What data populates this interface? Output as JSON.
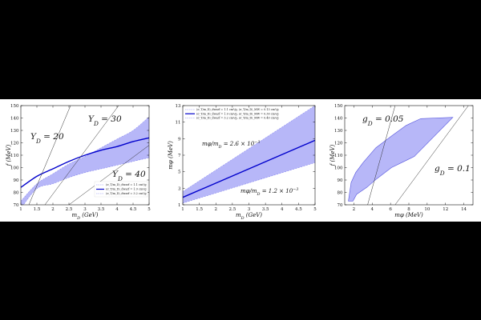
{
  "chart_data": [
    {
      "type": "area",
      "xlabel": "m_D (GeV)",
      "ylabel": "f (MeV)",
      "xlim": [
        1,
        5
      ],
      "ylim": [
        70,
        150
      ],
      "xticks": [
        1,
        1.5,
        2,
        2.5,
        3,
        3.5,
        4,
        4.5,
        5
      ],
      "yticks": [
        70,
        80,
        90,
        100,
        110,
        120,
        130,
        140,
        150
      ],
      "x": [
        1,
        1.5,
        2,
        2.5,
        3,
        3.5,
        4,
        4.5,
        5
      ],
      "series": [
        {
          "name": "⟨σ_T/m_D⟩_dwarf = 1.1 cm²/g",
          "style": "dashed",
          "values": [
            73,
            87,
            95,
            103,
            109,
            116,
            123,
            130,
            141
          ]
        },
        {
          "name": "⟨σ_T/m_D⟩_dwarf = 1.9 cm²/g",
          "style": "solid",
          "values": [
            84,
            93,
            99,
            105,
            110,
            114,
            117,
            121,
            124
          ]
        },
        {
          "name": "⟨σ_T/m_D⟩_dwarf = 3.2 cm²/g",
          "style": "dashed",
          "values": [
            67,
            83,
            87,
            92,
            96,
            99,
            102,
            105,
            108
          ]
        }
      ],
      "lines": [
        {
          "label": "Y_D = 20",
          "points": [
            [
              1.25,
              70
            ],
            [
              2.55,
              150
            ]
          ]
        },
        {
          "label": "Y_D = 30",
          "points": [
            [
              1.75,
              70
            ],
            [
              4.05,
              150
            ]
          ]
        },
        {
          "label": "Y_D = 40",
          "points": [
            [
              2.5,
              70
            ],
            [
              5,
              118
            ]
          ]
        }
      ],
      "annotations": [
        "Y_D = 20",
        "Y_D = 30",
        "Y_D = 40"
      ],
      "legend": "bottom-right",
      "grid": false,
      "colors": {
        "band": "#aaaaf7",
        "line": "#0000cc"
      }
    },
    {
      "type": "area",
      "xlabel": "m_D (GeV)",
      "ylabel": "m_φ (MeV)",
      "xlim": [
        1,
        5
      ],
      "ylim": [
        1,
        13
      ],
      "xticks": [
        1,
        1.5,
        2,
        2.5,
        3,
        3.5,
        4,
        4.5,
        5
      ],
      "yticks": [
        1,
        3,
        5,
        7,
        9,
        11,
        13
      ],
      "x": [
        1,
        5
      ],
      "series": [
        {
          "name": "⟨σ_T/m_D⟩_dwarf = 1.1 cm²/g, ⟨σ_T/m_D⟩_MW = 0.13 cm²/g",
          "style": "dashed",
          "values": [
            2.6,
            13.0
          ]
        },
        {
          "name": "⟨σ_T/m_D⟩_dwarf = 1.9 cm²/g, ⟨σ_T/m_D⟩_MW = 0.30 cm²/g",
          "style": "solid",
          "values": [
            1.9,
            8.8
          ]
        },
        {
          "name": "⟨σ_T/m_D⟩_dwarf = 3.2 cm²/g, ⟨σ_T/m_D⟩_MW = 0.40 cm²/g",
          "style": "dashed",
          "values": [
            1.2,
            6.1
          ]
        }
      ],
      "annotations": [
        "m_φ/m_D = 2.6 × 10⁻³",
        "m_φ/m_D = 1.2 × 10⁻³"
      ],
      "legend": "top",
      "grid": false,
      "colors": {
        "band": "#aaaaf7",
        "line": "#0000cc"
      }
    },
    {
      "type": "area",
      "xlabel": "m_φ (MeV)",
      "ylabel": "f (MeV)",
      "xlim": [
        1,
        15
      ],
      "ylim": [
        70,
        150
      ],
      "xticks": [
        2,
        4,
        6,
        8,
        10,
        12,
        14
      ],
      "yticks": [
        70,
        80,
        90,
        100,
        110,
        120,
        130,
        140,
        150
      ],
      "region": [
        [
          1.4,
          73
        ],
        [
          1.7,
          88
        ],
        [
          2.2,
          96
        ],
        [
          3,
          104
        ],
        [
          4.4,
          116
        ],
        [
          6.2,
          126
        ],
        [
          7.7,
          134
        ],
        [
          9.3,
          139.5
        ],
        [
          12.8,
          140.5
        ],
        [
          8.6,
          109
        ],
        [
          6.1,
          100
        ],
        [
          4.5,
          91
        ],
        [
          3.4,
          84
        ],
        [
          2.3,
          78.5
        ],
        [
          1.9,
          73
        ]
      ],
      "lines": [
        {
          "label": "g_D = 0.05",
          "points": [
            [
              3.5,
              70
            ],
            [
              6.5,
              150
            ]
          ]
        },
        {
          "label": "g_D = 0.1",
          "points": [
            [
              6.5,
              70
            ],
            [
              14.5,
              150
            ]
          ]
        }
      ],
      "annotations": [
        "g_D = 0.05",
        "g_D = 0.1"
      ],
      "grid": false,
      "colors": {
        "band": "#aaaaf7",
        "line": "#333333"
      }
    }
  ]
}
